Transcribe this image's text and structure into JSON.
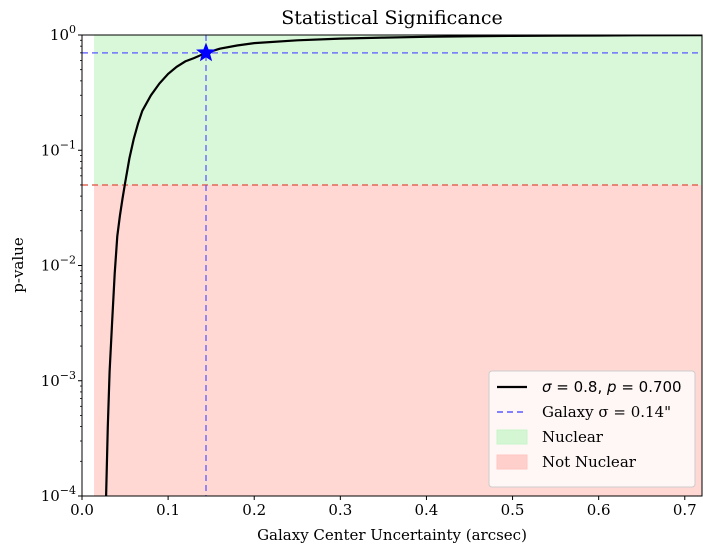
{
  "chart_data": {
    "type": "line",
    "title": "Statistical Significance",
    "xlabel": "Galaxy Center Uncertainty (arcsec)",
    "ylabel": "p-value",
    "xlim": [
      0.0,
      0.72
    ],
    "ylim": [
      0.0001,
      1.0
    ],
    "yscale": "log",
    "grid": false,
    "legend_position": "bottom-right",
    "x_ticks": [
      0.0,
      0.1,
      0.2,
      0.3,
      0.4,
      0.5,
      0.6,
      0.7
    ],
    "x_tick_labels": [
      "0.0",
      "0.1",
      "0.2",
      "0.3",
      "0.4",
      "0.5",
      "0.6",
      "0.7"
    ],
    "y_ticks": [
      {
        "value": 0.0001,
        "base": "10",
        "exp": "−4"
      },
      {
        "value": 0.001,
        "base": "10",
        "exp": "−3"
      },
      {
        "value": 0.01,
        "base": "10",
        "exp": "−2"
      },
      {
        "value": 0.1,
        "base": "10",
        "exp": "−1"
      },
      {
        "value": 1.0,
        "base": "10",
        "exp": "0"
      }
    ],
    "curve": {
      "color": "#000000",
      "x": [
        0.028,
        0.03,
        0.032,
        0.035,
        0.038,
        0.041,
        0.044,
        0.047,
        0.05,
        0.055,
        0.06,
        0.065,
        0.07,
        0.08,
        0.09,
        0.1,
        0.11,
        0.12,
        0.13,
        0.144,
        0.16,
        0.18,
        0.2,
        0.25,
        0.3,
        0.35,
        0.4,
        0.45,
        0.5,
        0.55,
        0.6,
        0.65,
        0.72
      ],
      "y": [
        0.0001,
        0.0004,
        0.0012,
        0.0032,
        0.0085,
        0.018,
        0.027,
        0.038,
        0.052,
        0.085,
        0.125,
        0.17,
        0.22,
        0.3,
        0.38,
        0.46,
        0.53,
        0.59,
        0.63,
        0.7,
        0.76,
        0.81,
        0.85,
        0.9,
        0.93,
        0.95,
        0.965,
        0.975,
        0.982,
        0.987,
        0.991,
        0.994,
        0.997
      ]
    },
    "regions": [
      {
        "name": "Nuclear",
        "y_from": 0.05,
        "y_to": 1.0,
        "x_from": 0.014,
        "color": "#c9f5c9"
      },
      {
        "name": "Not Nuclear",
        "y_from": 0.0001,
        "y_to": 0.05,
        "x_from": 0.014,
        "color": "#ffc6c0"
      }
    ],
    "threshold_line": {
      "y": 0.05,
      "color": "#e05a4a"
    },
    "galaxy_line": {
      "x": 0.144,
      "y": 0.7,
      "color": "#5a5aff"
    },
    "marker": {
      "x": 0.144,
      "y": 0.7,
      "color": "#0000ff"
    },
    "legend": [
      {
        "kind": "line",
        "label_sigma": "σ",
        "label_mid": " = 0.8, ",
        "label_p": "p",
        "label_end": " = 0.700"
      },
      {
        "kind": "dashed",
        "label": "Galaxy σ = 0.14\""
      },
      {
        "kind": "patch",
        "label": "Nuclear",
        "color": "#c9f5c9"
      },
      {
        "kind": "patch",
        "label": "Not Nuclear",
        "color": "#ffc6c0"
      }
    ]
  }
}
